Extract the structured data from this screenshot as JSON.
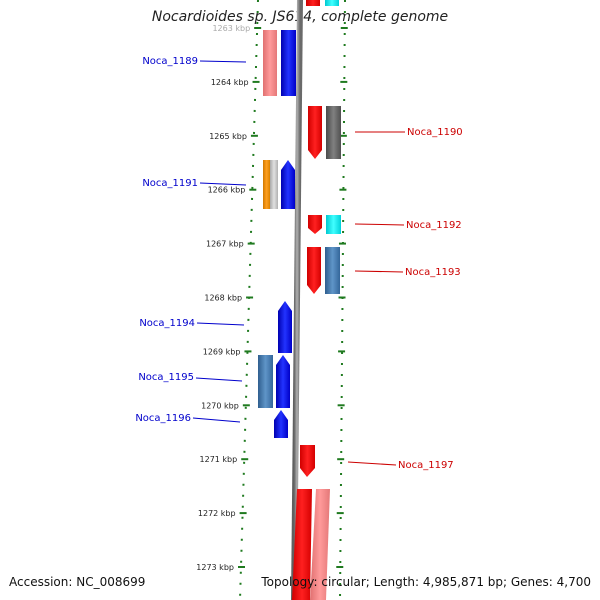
{
  "title": "Nocardioides sp. JS614, complete genome",
  "footer": {
    "accession": "Accession: NC_008699",
    "summary": "Topology: circular; Length: 4,985,871 bp; Genes: 4,700"
  },
  "colors": {
    "left_label": "#0000cc",
    "right_label": "#cc0000",
    "track_tick": "#1f7a1f",
    "backbone": "#808080"
  },
  "scale": {
    "unit": "kbp",
    "ticks": [
      "1263 kbp",
      "1264 kbp",
      "1265 kbp",
      "1266 kbp",
      "1267 kbp",
      "1268 kbp",
      "1269 kbp",
      "1270 kbp",
      "1271 kbp",
      "1272 kbp",
      "1273 kbp"
    ]
  },
  "genes_left": [
    {
      "label": "Noca_1189"
    },
    {
      "label": "Noca_1191"
    },
    {
      "label": "Noca_1194"
    },
    {
      "label": "Noca_1195"
    },
    {
      "label": "Noca_1196"
    }
  ],
  "genes_right": [
    {
      "label": "Noca_1190"
    },
    {
      "label": "Noca_1192"
    },
    {
      "label": "Noca_1193"
    },
    {
      "label": "Noca_1197"
    }
  ]
}
